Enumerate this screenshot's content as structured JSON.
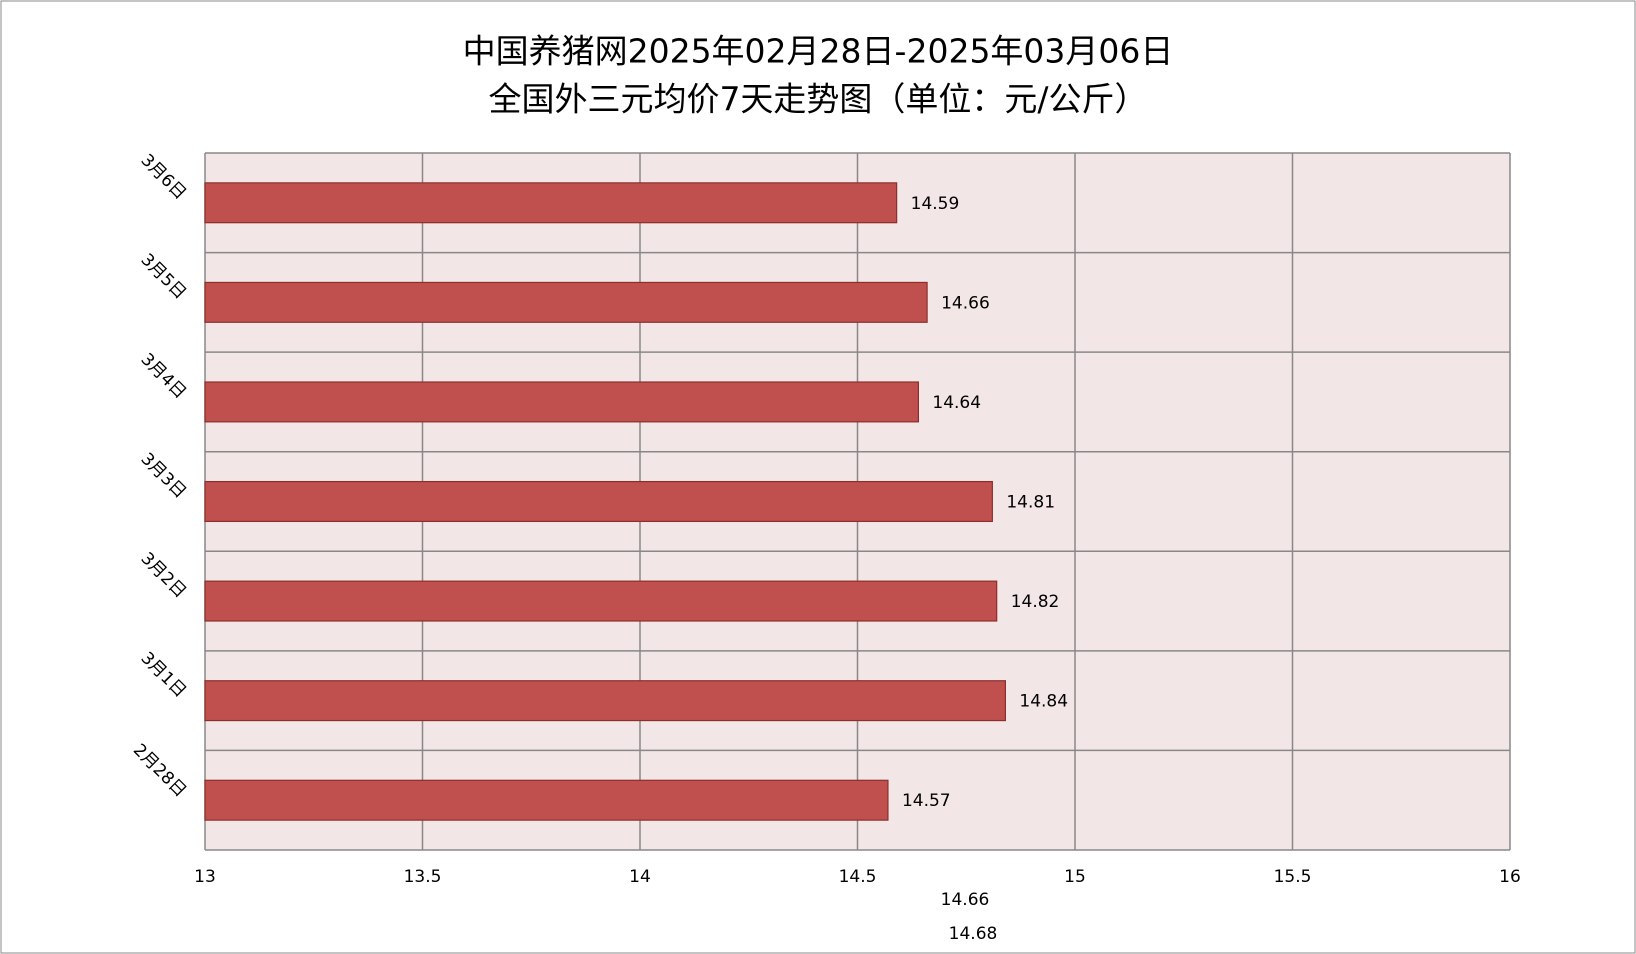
{
  "chart_data": {
    "type": "bar",
    "orientation": "horizontal",
    "title": [
      "中国养猪网2025年02月28日-2025年03月06日",
      "全国外三元均价7天走势图（单位：元/公斤）"
    ],
    "categories": [
      "2月28日",
      "3月1日",
      "3月2日",
      "3月3日",
      "3月4日",
      "3月5日",
      "3月6日"
    ],
    "values": [
      14.57,
      14.84,
      14.82,
      14.81,
      14.64,
      14.66,
      14.59
    ],
    "color": "#c0504d",
    "xlim": [
      13,
      16
    ],
    "xticks": [
      13,
      13.5,
      14,
      14.5,
      15,
      15.5,
      16
    ],
    "grid": true,
    "annotations": [
      "14.66",
      "14.68"
    ]
  }
}
